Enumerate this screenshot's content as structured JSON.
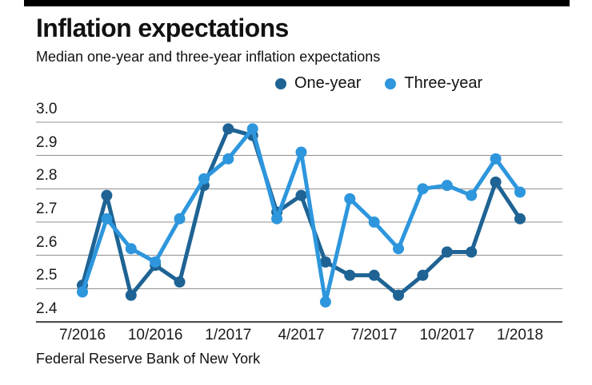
{
  "header": {
    "title": "Inflation expectations",
    "subtitle": "Median one-year and three-year inflation expectations"
  },
  "legend": [
    {
      "label": "One-year",
      "color": "#1e6394"
    },
    {
      "label": "Three-year",
      "color": "#2d96dd"
    }
  ],
  "source": "Federal Reserve Bank of New York",
  "colors": {
    "one_year": "#1e6394",
    "three_year": "#2d96dd",
    "gridline": "#909090",
    "baseline": "#4a4a4a",
    "text": "#111111",
    "top_bar": "#000000"
  },
  "chart_data": {
    "type": "line",
    "title": "Inflation expectations",
    "subtitle": "Median one-year and three-year inflation expectations",
    "x": [
      "7/2016",
      "8/2016",
      "9/2016",
      "10/2016",
      "11/2016",
      "12/2016",
      "1/2017",
      "2/2017",
      "3/2017",
      "4/2017",
      "5/2017",
      "6/2017",
      "7/2017",
      "8/2017",
      "9/2017",
      "10/2017",
      "11/2017",
      "12/2017",
      "1/2018"
    ],
    "series": [
      {
        "name": "One-year",
        "color": "#1e6394",
        "values": [
          2.51,
          2.78,
          2.48,
          2.57,
          2.52,
          2.81,
          2.98,
          2.96,
          2.73,
          2.78,
          2.58,
          2.54,
          2.54,
          2.48,
          2.54,
          2.61,
          2.61,
          2.82,
          2.71
        ]
      },
      {
        "name": "Three-year",
        "color": "#2d96dd",
        "values": [
          2.49,
          2.71,
          2.62,
          2.58,
          2.71,
          2.83,
          2.89,
          2.98,
          2.71,
          2.91,
          2.46,
          2.77,
          2.7,
          2.62,
          2.8,
          2.81,
          2.78,
          2.89,
          2.79
        ]
      }
    ],
    "ylim": [
      2.4,
      3.0
    ],
    "y_ticks": [
      "3.0",
      "2.9",
      "2.8",
      "2.7",
      "2.6",
      "2.5",
      "2.4"
    ],
    "x_tick_indices": [
      0,
      3,
      6,
      9,
      12,
      15,
      18
    ],
    "x_tick_labels": [
      "7/2016",
      "10/2016",
      "1/2017",
      "4/2017",
      "7/2017",
      "10/2017",
      "1/2018"
    ],
    "grid": true,
    "legend_position": "top-right",
    "source": "Federal Reserve Bank of New York"
  }
}
